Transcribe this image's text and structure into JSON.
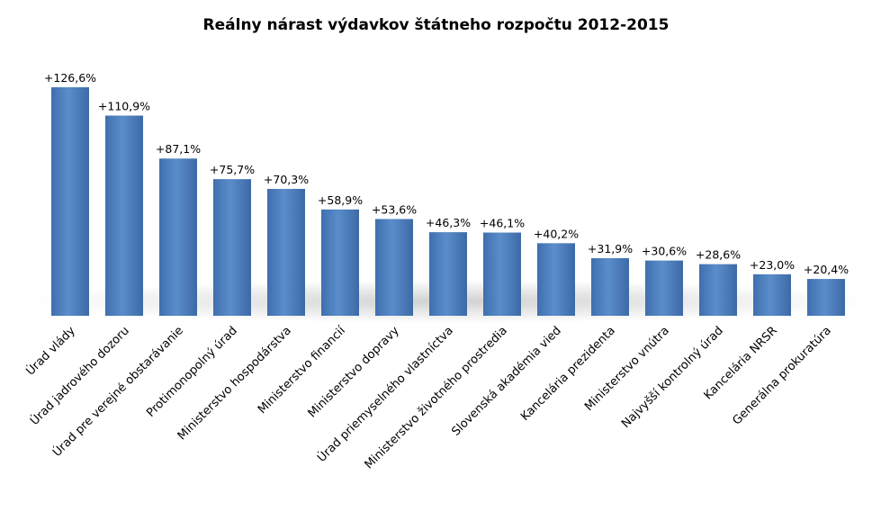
{
  "chart_data": {
    "type": "bar",
    "title": "Reálny nárast výdavkov štátneho rozpočtu 2012-2015",
    "xlabel": "",
    "ylabel": "",
    "ylim": [
      0,
      140
    ],
    "grid": false,
    "legend": "none",
    "bar_color": "#4F81BD",
    "categories": [
      "Úrad vlády",
      "Úrad jadrového dozoru",
      "Úrad pre verejné obstarávanie",
      "Protimonopolný úrad",
      "Ministerstvo hospodárstva",
      "Ministerstvo financií",
      "Ministerstvo dopravy",
      "Úrad priemyselného vlastníctva",
      "Ministerstvo životného prostredia",
      "Slovenská akadémia vied",
      "Kancelária prezidenta",
      "Ministerstvo vnútra",
      "Najvyšší kontrolný úrad",
      "Kancelária NRSR",
      "Generálna prokuratúra"
    ],
    "values": [
      126.6,
      110.9,
      87.1,
      75.7,
      70.3,
      58.9,
      53.6,
      46.3,
      46.1,
      40.2,
      31.9,
      30.6,
      28.6,
      23.0,
      20.4
    ],
    "data_labels": [
      "+126,6%",
      "+110,9%",
      "+87,1%",
      "+75,7%",
      "+70,3%",
      "+58,9%",
      "+53,6%",
      "+46,3%",
      "+46,1%",
      "+40,2%",
      "+31,9%",
      "+30,6%",
      "+28,6%",
      "+23,0%",
      "+20,4%"
    ]
  }
}
